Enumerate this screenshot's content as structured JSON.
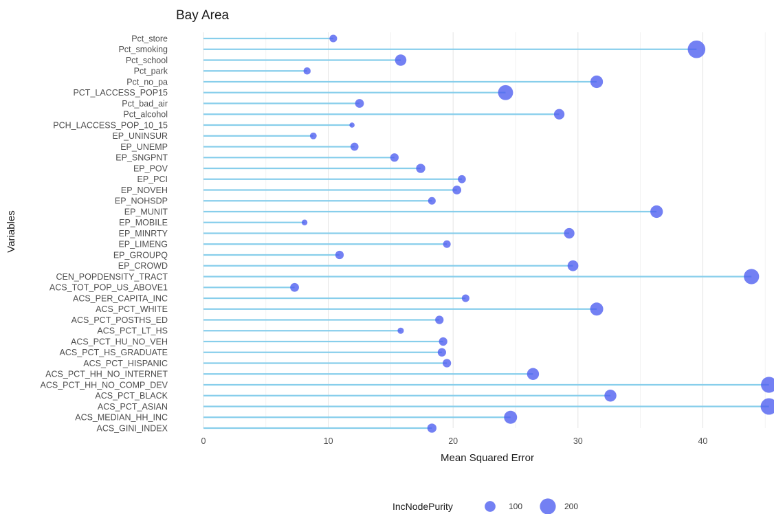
{
  "chart_data": {
    "type": "scatter",
    "subtype": "lollipop",
    "title": "Bay Area",
    "xlabel": "Mean Squared Error",
    "ylabel": "Variables",
    "xlim": [
      0,
      45.5
    ],
    "xticks": [
      0,
      10,
      20,
      30,
      40
    ],
    "grid": true,
    "colors": {
      "stem": "#87CEEB",
      "point": "#4B5CF0",
      "grid": "#e6e6e6"
    },
    "legend": {
      "title": "IncNodePurity",
      "position": "bottom",
      "entries": [
        {
          "label": "100",
          "value": 100
        },
        {
          "label": "200",
          "value": 200
        }
      ]
    },
    "size_range": [
      30,
      240
    ],
    "points": [
      {
        "variable": "Pct_store",
        "mse": 10.4,
        "inc_node_purity": 55
      },
      {
        "variable": "Pct_smoking",
        "mse": 39.5,
        "inc_node_purity": 240
      },
      {
        "variable": "Pct_school",
        "mse": 15.8,
        "inc_node_purity": 110
      },
      {
        "variable": "Pct_park",
        "mse": 8.3,
        "inc_node_purity": 50
      },
      {
        "variable": "Pct_no_pa",
        "mse": 31.5,
        "inc_node_purity": 130
      },
      {
        "variable": "PCT_LACCESS_POP15",
        "mse": 24.2,
        "inc_node_purity": 180
      },
      {
        "variable": "Pct_bad_air",
        "mse": 12.5,
        "inc_node_purity": 70
      },
      {
        "variable": "Pct_alcohol",
        "mse": 28.5,
        "inc_node_purity": 95
      },
      {
        "variable": "PCH_LACCESS_POP_10_15",
        "mse": 11.9,
        "inc_node_purity": 30
      },
      {
        "variable": "EP_UNINSUR",
        "mse": 8.8,
        "inc_node_purity": 45
      },
      {
        "variable": "EP_UNEMP",
        "mse": 12.1,
        "inc_node_purity": 60
      },
      {
        "variable": "EP_SNGPNT",
        "mse": 15.3,
        "inc_node_purity": 65
      },
      {
        "variable": "EP_POV",
        "mse": 17.4,
        "inc_node_purity": 75
      },
      {
        "variable": "EP_PCI",
        "mse": 20.7,
        "inc_node_purity": 60
      },
      {
        "variable": "EP_NOVEH",
        "mse": 20.3,
        "inc_node_purity": 70
      },
      {
        "variable": "EP_NOHSDP",
        "mse": 18.3,
        "inc_node_purity": 55
      },
      {
        "variable": "EP_MUNIT",
        "mse": 36.3,
        "inc_node_purity": 130
      },
      {
        "variable": "EP_MOBILE",
        "mse": 8.1,
        "inc_node_purity": 35
      },
      {
        "variable": "EP_MINRTY",
        "mse": 29.3,
        "inc_node_purity": 95
      },
      {
        "variable": "EP_LIMENG",
        "mse": 19.5,
        "inc_node_purity": 55
      },
      {
        "variable": "EP_GROUPQ",
        "mse": 10.9,
        "inc_node_purity": 65
      },
      {
        "variable": "EP_CROWD",
        "mse": 29.6,
        "inc_node_purity": 100
      },
      {
        "variable": "CEN_POPDENSITY_TRACT",
        "mse": 43.9,
        "inc_node_purity": 185
      },
      {
        "variable": "ACS_TOT_POP_US_ABOVE1",
        "mse": 7.3,
        "inc_node_purity": 70
      },
      {
        "variable": "ACS_PER_CAPITA_INC",
        "mse": 21.0,
        "inc_node_purity": 55
      },
      {
        "variable": "ACS_PCT_WHITE",
        "mse": 31.5,
        "inc_node_purity": 140
      },
      {
        "variable": "ACS_PCT_POSTHS_ED",
        "mse": 18.9,
        "inc_node_purity": 65
      },
      {
        "variable": "ACS_PCT_LT_HS",
        "mse": 15.8,
        "inc_node_purity": 40
      },
      {
        "variable": "ACS_PCT_HU_NO_VEH",
        "mse": 19.2,
        "inc_node_purity": 65
      },
      {
        "variable": "ACS_PCT_HS_GRADUATE",
        "mse": 19.1,
        "inc_node_purity": 65
      },
      {
        "variable": "ACS_PCT_HISPANIC",
        "mse": 19.5,
        "inc_node_purity": 65
      },
      {
        "variable": "ACS_PCT_HH_NO_INTERNET",
        "mse": 26.4,
        "inc_node_purity": 120
      },
      {
        "variable": "ACS_PCT_HH_NO_COMP_DEV",
        "mse": 45.3,
        "inc_node_purity": 200
      },
      {
        "variable": "ACS_PCT_BLACK",
        "mse": 32.6,
        "inc_node_purity": 120
      },
      {
        "variable": "ACS_PCT_ASIAN",
        "mse": 45.3,
        "inc_node_purity": 215
      },
      {
        "variable": "ACS_MEDIAN_HH_INC",
        "mse": 24.6,
        "inc_node_purity": 140
      },
      {
        "variable": "ACS_GINI_INDEX",
        "mse": 18.3,
        "inc_node_purity": 75
      }
    ]
  }
}
